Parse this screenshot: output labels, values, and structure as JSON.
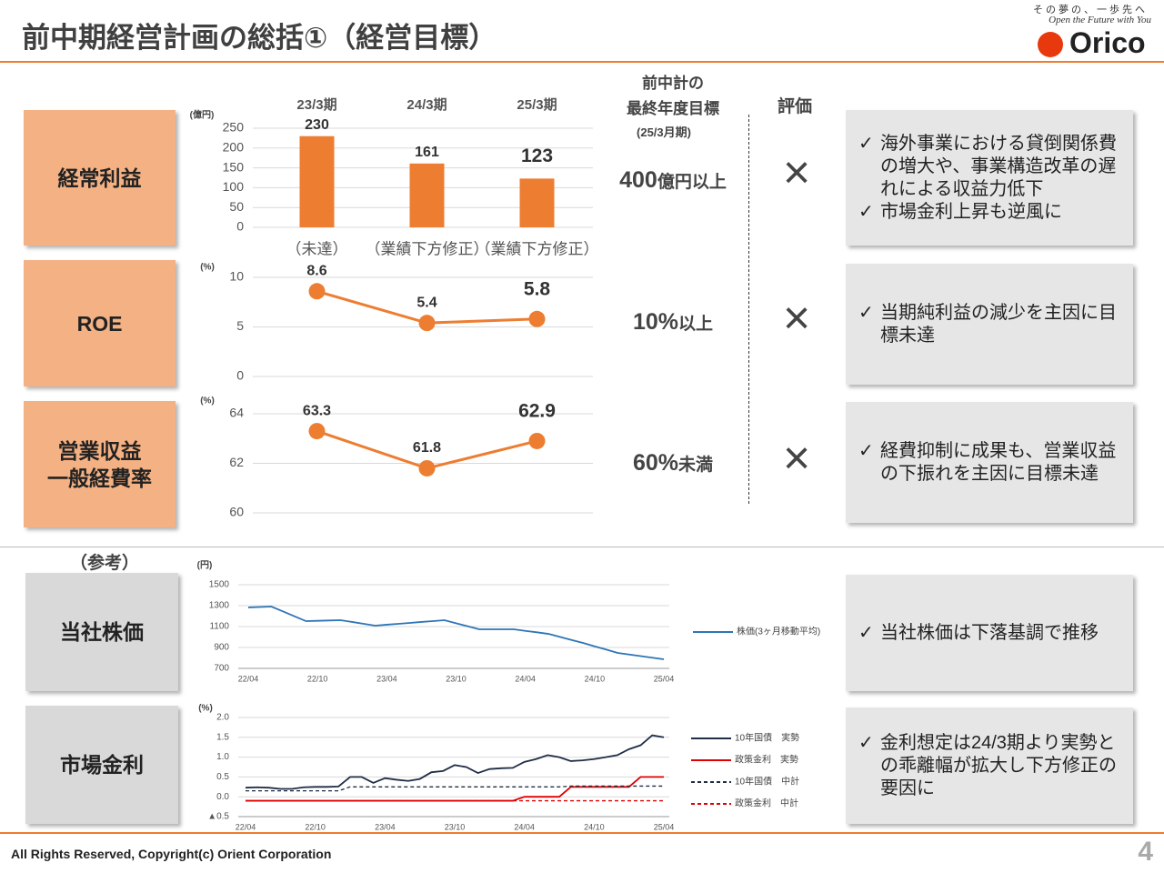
{
  "header": {
    "title": "前中期経営計画の総括①（経営目標）",
    "tagline": "その夢の、一歩先へ",
    "slogan": "Open the Future with You",
    "brand": "Orico"
  },
  "columns": {
    "target": "前中計の\n最終年度目標",
    "target_period": "(25/3月期)",
    "evaluation": "評価"
  },
  "rows": [
    {
      "label": "経常利益",
      "target": {
        "number": "400",
        "unit": "億円以上"
      },
      "evaluation": "×",
      "comments": [
        "海外事業における貸倒関係費の増大や、事業構造改革の遅れによる収益力低下",
        "市場金利上昇も逆風に"
      ]
    },
    {
      "label": "ROE",
      "target": {
        "number": "10%",
        "unit": "以上"
      },
      "evaluation": "×",
      "comments": [
        "当期純利益の減少を主因に目標未達"
      ]
    },
    {
      "label": "営業収益\n一般経費率",
      "target": {
        "number": "60%",
        "unit": "未満"
      },
      "evaluation": "×",
      "comments": [
        "経費抑制に成果も、営業収益の下振れを主因に目標未達"
      ]
    }
  ],
  "reference": {
    "title": "（参考）",
    "rows": [
      {
        "label": "当社株価",
        "comments": [
          "当社株価は下落基調で推移"
        ]
      },
      {
        "label": "市場金利",
        "comments": [
          "金利想定は24/3期より実勢との乖離幅が拡大し下方修正の要因に"
        ]
      }
    ]
  },
  "footer": {
    "copyright": "All Rights Reserved, Copyright(c) Orient Corporation",
    "page": "4"
  },
  "chart_data": [
    {
      "type": "bar",
      "y_unit": "(億円)",
      "categories": [
        "23/3期",
        "24/3期",
        "25/3期"
      ],
      "values": [
        230,
        161,
        123
      ],
      "color": "#ed7d31",
      "annotations": [
        "（未達）",
        "（業績下方修正）",
        "（業績下方修正）"
      ],
      "ylim": [
        0,
        250
      ],
      "yticks": [
        0,
        50,
        100,
        150,
        200,
        250
      ],
      "grid": true
    },
    {
      "type": "line",
      "y_unit": "(%)",
      "values": [
        8.6,
        5.4,
        5.8
      ],
      "color": "#ed7d31",
      "ylim": [
        0,
        10
      ],
      "yticks": [
        0,
        5,
        10
      ],
      "grid": true
    },
    {
      "type": "line",
      "y_unit": "(%)",
      "values": [
        63.3,
        61.8,
        62.9
      ],
      "color": "#ed7d31",
      "ylim": [
        60,
        64
      ],
      "yticks": [
        60,
        62,
        64
      ],
      "grid": true
    },
    {
      "type": "line",
      "y_unit": "(円)",
      "categories": [
        "22/04",
        null,
        null,
        null,
        null,
        null,
        "22/10",
        null,
        null,
        null,
        null,
        null,
        "23/04",
        null,
        null,
        null,
        null,
        null,
        "23/10",
        null,
        null,
        null,
        null,
        null,
        "24/04",
        null,
        null,
        null,
        null,
        null,
        "24/10",
        null,
        null,
        null,
        null,
        null,
        "25/04"
      ],
      "series": [
        {
          "name": "株価(3ヶ月移動平均)",
          "color": "#2e75b6",
          "values": [
            1283,
            1287,
            1291,
            1245,
            1198,
            1152,
            1155,
            1158,
            1161,
            1144,
            1126,
            1109,
            1118,
            1126,
            1135,
            1144,
            1152,
            1161,
            1132,
            1103,
            1074,
            1074,
            1074,
            1074,
            1059,
            1045,
            1030,
            1001,
            972,
            943,
            911,
            880,
            848,
            833,
            817,
            802,
            787
          ]
        }
      ],
      "ylim": [
        700,
        1500
      ],
      "yticks": [
        700,
        900,
        1100,
        1300,
        1500
      ],
      "grid": true
    },
    {
      "type": "line",
      "y_unit": "(%)",
      "categories": [
        "22/04",
        null,
        null,
        null,
        null,
        null,
        "22/10",
        null,
        null,
        null,
        null,
        null,
        "23/04",
        null,
        null,
        null,
        null,
        null,
        "23/10",
        null,
        null,
        null,
        null,
        null,
        "24/04",
        null,
        null,
        null,
        null,
        null,
        "24/10",
        null,
        null,
        null,
        null,
        null,
        "25/04"
      ],
      "series": [
        {
          "name": "10年国債　実勢",
          "color": "#1f2d45",
          "style": "solid",
          "values": [
            0.23,
            0.24,
            0.23,
            0.2,
            0.2,
            0.24,
            0.25,
            0.25,
            0.26,
            0.5,
            0.5,
            0.35,
            0.47,
            0.43,
            0.4,
            0.45,
            0.62,
            0.65,
            0.8,
            0.75,
            0.6,
            0.7,
            0.72,
            0.73,
            0.88,
            0.95,
            1.05,
            1.0,
            0.9,
            0.92,
            0.95,
            1.0,
            1.05,
            1.2,
            1.3,
            1.55,
            1.5
          ]
        },
        {
          "name": "政策金利　実勢",
          "color": "#e00000",
          "style": "solid",
          "values": [
            -0.1,
            -0.1,
            -0.1,
            -0.1,
            -0.1,
            -0.1,
            -0.1,
            -0.1,
            -0.1,
            -0.1,
            -0.1,
            -0.1,
            -0.1,
            -0.1,
            -0.1,
            -0.1,
            -0.1,
            -0.1,
            -0.1,
            -0.1,
            -0.1,
            -0.1,
            -0.1,
            -0.1,
            0,
            0,
            0,
            0,
            0.25,
            0.25,
            0.25,
            0.25,
            0.25,
            0.25,
            0.5,
            0.5,
            0.5
          ]
        },
        {
          "name": "10年国債　中計",
          "color": "#1f2d45",
          "style": "dashed",
          "values": [
            0.15,
            0.15,
            0.15,
            0.15,
            0.15,
            0.15,
            0.15,
            0.15,
            0.15,
            0.25,
            0.25,
            0.25,
            0.25,
            0.25,
            0.25,
            0.25,
            0.25,
            0.25,
            0.25,
            0.25,
            0.25,
            0.25,
            0.25,
            0.25,
            0.25,
            0.25,
            0.25,
            0.25,
            0.27,
            0.27,
            0.27,
            0.27,
            0.27,
            0.27,
            0.27,
            0.27,
            0.27
          ]
        },
        {
          "name": "政策金利　中計",
          "color": "#e00000",
          "style": "dashed",
          "values": [
            -0.1,
            -0.1,
            -0.1,
            -0.1,
            -0.1,
            -0.1,
            -0.1,
            -0.1,
            -0.1,
            -0.1,
            -0.1,
            -0.1,
            -0.1,
            -0.1,
            -0.1,
            -0.1,
            -0.1,
            -0.1,
            -0.1,
            -0.1,
            -0.1,
            -0.1,
            -0.1,
            -0.1,
            -0.1,
            -0.1,
            -0.1,
            -0.1,
            -0.1,
            -0.1,
            -0.1,
            -0.1,
            -0.1,
            -0.1,
            -0.1,
            -0.1,
            -0.1
          ]
        }
      ],
      "ylim": [
        -0.5,
        2.0
      ],
      "yticks": [
        {
          "value": -0.5,
          "label": "▲0.5"
        },
        {
          "value": 0,
          "label": "0.0"
        },
        0.5,
        {
          "value": 1,
          "label": "1.0"
        },
        1.5,
        {
          "value": 2,
          "label": "2.0"
        }
      ],
      "grid": true
    }
  ]
}
